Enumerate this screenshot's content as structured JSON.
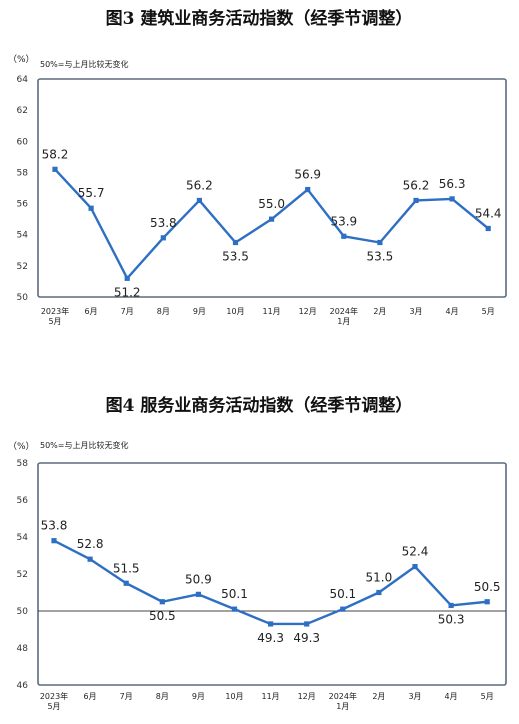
{
  "colors": {
    "line": "#2e6fc4",
    "border": "#5b6b7f",
    "grid": "#444444"
  },
  "chart_data": [
    {
      "type": "line",
      "title": "图3  建筑业商务活动指数（经季节调整）",
      "unit": "（%）",
      "note": "50%=与上月比较无变化",
      "categories": [
        [
          "2023年",
          "5月"
        ],
        [
          "6月"
        ],
        [
          "7月"
        ],
        [
          "8月"
        ],
        [
          "9月"
        ],
        [
          "10月"
        ],
        [
          "11月"
        ],
        [
          "12月"
        ],
        [
          "2024年",
          "1月"
        ],
        [
          "2月"
        ],
        [
          "3月"
        ],
        [
          "4月"
        ],
        [
          "5月"
        ]
      ],
      "values": [
        58.2,
        55.7,
        51.2,
        53.8,
        56.2,
        53.5,
        55.0,
        56.9,
        53.9,
        53.5,
        56.2,
        56.3,
        54.4
      ],
      "ylim": [
        50,
        64
      ],
      "yticks": [
        "50",
        "52",
        "54",
        "56",
        "58",
        "60",
        "62",
        "64"
      ],
      "baseline": null
    },
    {
      "type": "line",
      "title": "图4  服务业商务活动指数（经季节调整）",
      "unit": "（%）",
      "note": "50%=与上月比较无变化",
      "categories": [
        [
          "2023年",
          "5月"
        ],
        [
          "6月"
        ],
        [
          "7月"
        ],
        [
          "8月"
        ],
        [
          "9月"
        ],
        [
          "10月"
        ],
        [
          "11月"
        ],
        [
          "12月"
        ],
        [
          "2024年",
          "1月"
        ],
        [
          "2月"
        ],
        [
          "3月"
        ],
        [
          "4月"
        ],
        [
          "5月"
        ]
      ],
      "values": [
        53.8,
        52.8,
        51.5,
        50.5,
        50.9,
        50.1,
        49.3,
        49.3,
        50.1,
        51.0,
        52.4,
        50.3,
        50.5
      ],
      "ylim": [
        46,
        58
      ],
      "yticks": [
        "46",
        "48",
        "50",
        "52",
        "54",
        "56",
        "58"
      ],
      "baseline": 50
    }
  ]
}
